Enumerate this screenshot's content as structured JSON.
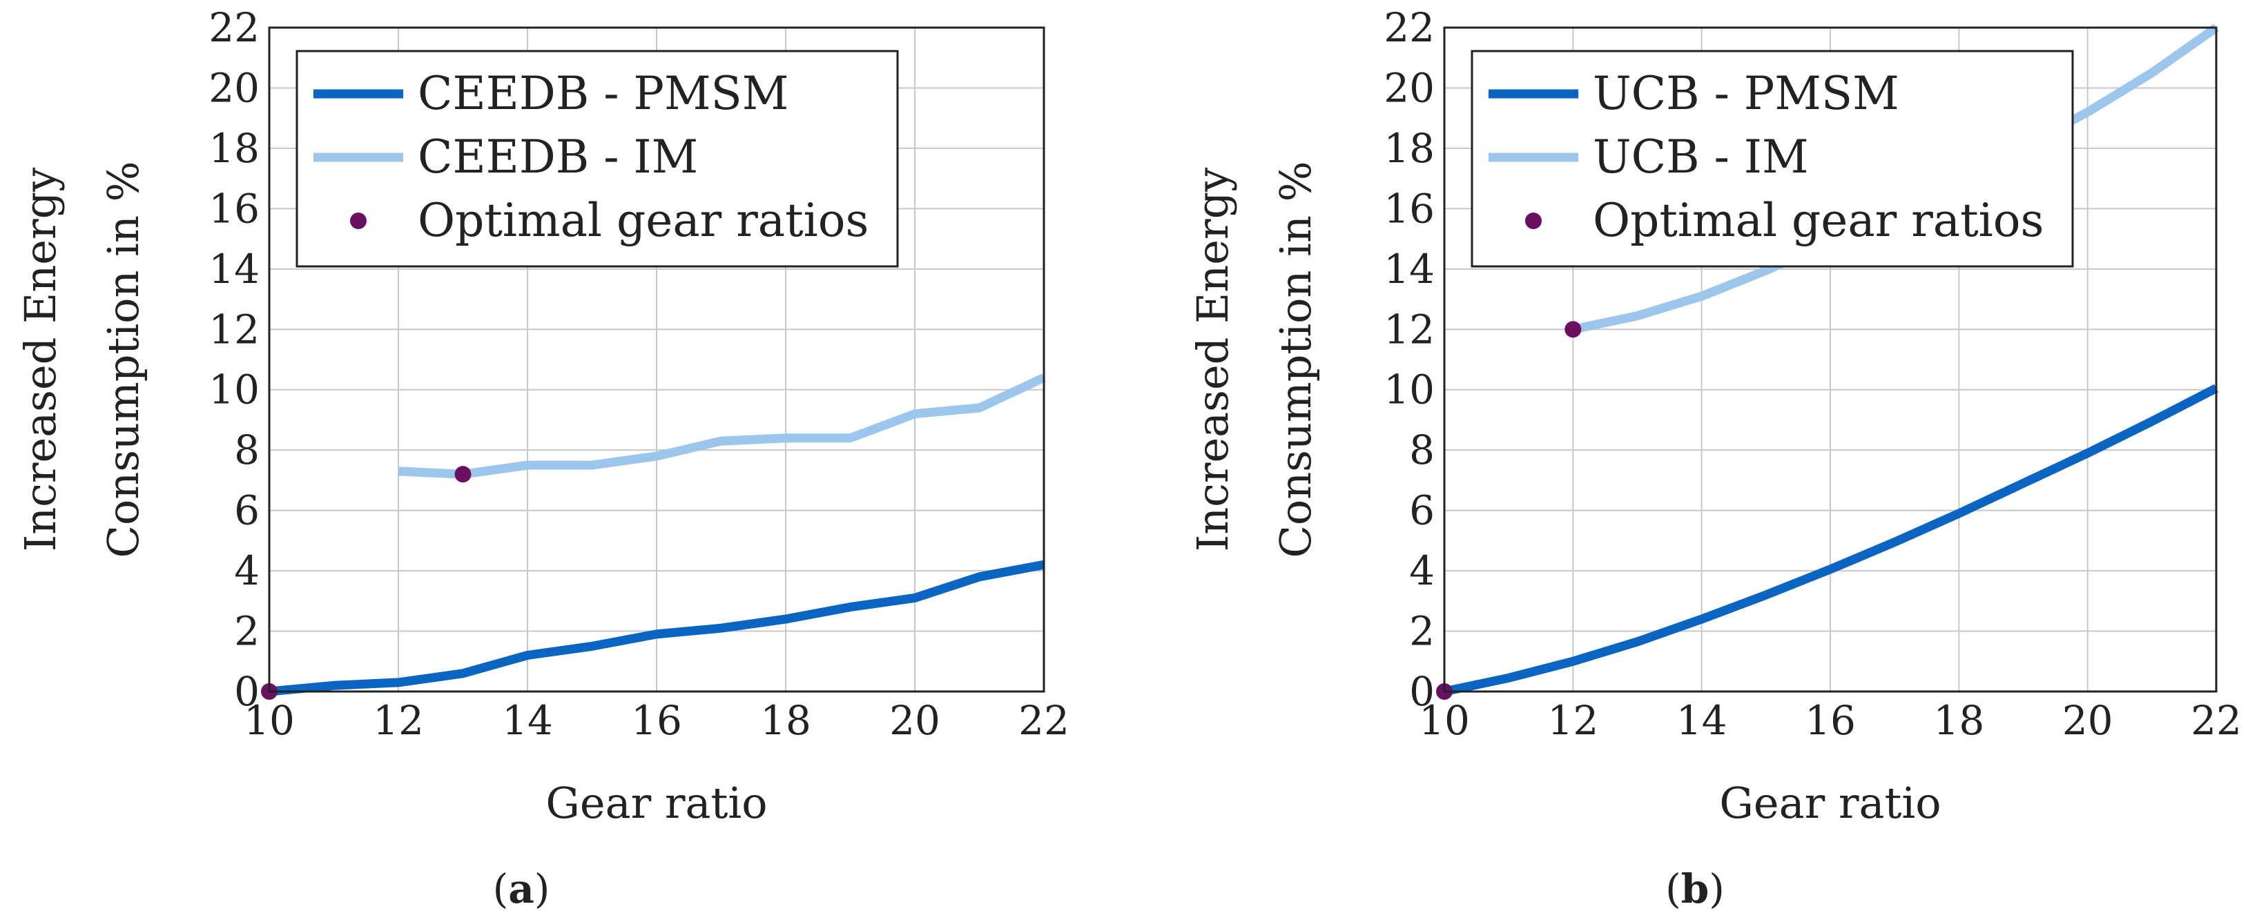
{
  "chart_data": [
    {
      "type": "line",
      "panel_label": "a",
      "xlabel": "Gear ratio",
      "ylabel_lines": [
        "Increased Energy",
        "Consumption in %"
      ],
      "xlim": [
        10,
        22
      ],
      "ylim": [
        0,
        22
      ],
      "xticks": [
        10,
        12,
        14,
        16,
        18,
        20,
        22
      ],
      "yticks": [
        0,
        2,
        4,
        6,
        8,
        10,
        12,
        14,
        16,
        18,
        20,
        22
      ],
      "grid": true,
      "legend_position": "top-left",
      "series": [
        {
          "name": "CEEDB - PMSM",
          "color": "#0a64c2",
          "x": [
            10,
            11,
            12,
            13,
            14,
            15,
            16,
            17,
            18,
            19,
            20,
            21,
            22
          ],
          "y": [
            0,
            0.2,
            0.3,
            0.6,
            1.2,
            1.5,
            1.9,
            2.1,
            2.4,
            2.8,
            3.1,
            3.8,
            4.2
          ]
        },
        {
          "name": "CEEDB - IM",
          "color": "#9cc6ec",
          "x": [
            12,
            13,
            14,
            15,
            16,
            17,
            18,
            19,
            20,
            21,
            22
          ],
          "y": [
            7.3,
            7.2,
            7.5,
            7.5,
            7.8,
            8.3,
            8.4,
            8.4,
            9.2,
            9.4,
            10.4
          ]
        }
      ],
      "markers": {
        "name": "Optimal gear ratios",
        "color": "#6b1060",
        "points": [
          {
            "x": 10,
            "y": 0
          },
          {
            "x": 13,
            "y": 7.2
          }
        ]
      }
    },
    {
      "type": "line",
      "panel_label": "b",
      "xlabel": "Gear ratio",
      "ylabel_lines": [
        "Increased Energy",
        "Consumption in %"
      ],
      "xlim": [
        10,
        22
      ],
      "ylim": [
        0,
        22
      ],
      "xticks": [
        10,
        12,
        14,
        16,
        18,
        20,
        22
      ],
      "yticks": [
        0,
        2,
        4,
        6,
        8,
        10,
        12,
        14,
        16,
        18,
        20,
        22
      ],
      "grid": true,
      "legend_position": "top-left",
      "series": [
        {
          "name": "UCB - PMSM",
          "color": "#0a64c2",
          "x": [
            10,
            11,
            12,
            13,
            14,
            15,
            16,
            17,
            18,
            19,
            20,
            21,
            22
          ],
          "y": [
            0,
            0.45,
            1.0,
            1.65,
            2.4,
            3.2,
            4.05,
            4.95,
            5.9,
            6.9,
            7.9,
            8.95,
            10.05
          ]
        },
        {
          "name": "UCB - IM",
          "color": "#9cc6ec",
          "x": [
            12,
            13,
            14,
            15,
            16,
            17,
            18,
            19,
            20,
            21,
            22
          ],
          "y": [
            12.0,
            12.45,
            13.1,
            13.95,
            14.9,
            15.9,
            16.95,
            18.05,
            19.2,
            20.5,
            22.0
          ]
        }
      ],
      "markers": {
        "name": "Optimal gear ratios",
        "color": "#6b1060",
        "points": [
          {
            "x": 10,
            "y": 0
          },
          {
            "x": 12,
            "y": 12.0
          }
        ]
      }
    }
  ]
}
